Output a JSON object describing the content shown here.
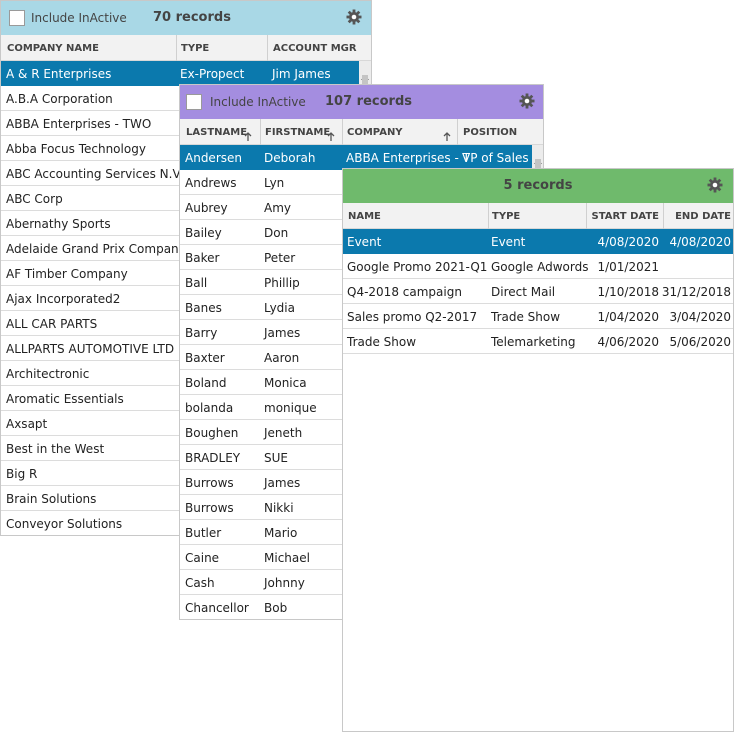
{
  "panels": [
    {
      "include_inactive": "Include InActive",
      "record_count": "70 records",
      "columns": [
        "COMPANY NAME",
        "TYPE",
        "ACCOUNT MGR"
      ],
      "rows": [
        [
          "A & R Enterprises",
          "Ex-Propect",
          "Jim James"
        ],
        [
          "A.B.A Corporation"
        ],
        [
          "ABBA Enterprises - TWO"
        ],
        [
          "Abba Focus Technology"
        ],
        [
          "ABC Accounting Services N.V"
        ],
        [
          "ABC Corp"
        ],
        [
          "Abernathy Sports"
        ],
        [
          "Adelaide Grand Prix Company"
        ],
        [
          "AF Timber Company"
        ],
        [
          "Ajax  Incorporated2"
        ],
        [
          "ALL CAR PARTS"
        ],
        [
          "ALLPARTS AUTOMOTIVE LTD"
        ],
        [
          "Architectronic"
        ],
        [
          "Aromatic Essentials"
        ],
        [
          "Axsapt"
        ],
        [
          "Best in the West"
        ],
        [
          "Big R"
        ],
        [
          "Brain Solutions"
        ],
        [
          "Conveyor Solutions"
        ]
      ]
    },
    {
      "include_inactive": "Include InActive",
      "record_count": "107 records",
      "columns": [
        "LASTNAME",
        "FIRSTNAME",
        "COMPANY",
        "POSITION"
      ],
      "rows": [
        [
          "Andersen",
          "Deborah",
          "ABBA Enterprises - T",
          "VP of Sales"
        ],
        [
          "Andrews",
          "Lyn"
        ],
        [
          "Aubrey",
          "Amy"
        ],
        [
          "Bailey",
          "Don"
        ],
        [
          "Baker",
          "Peter"
        ],
        [
          "Ball",
          "Phillip"
        ],
        [
          "Banes",
          "Lydia"
        ],
        [
          "Barry",
          "James"
        ],
        [
          "Baxter",
          "Aaron"
        ],
        [
          "Boland",
          "Monica"
        ],
        [
          "bolanda",
          "monique"
        ],
        [
          "Boughen",
          "Jeneth"
        ],
        [
          "BRADLEY",
          "SUE"
        ],
        [
          "Burrows",
          "James"
        ],
        [
          "Burrows",
          "Nikki"
        ],
        [
          "Butler",
          "Mario"
        ],
        [
          "Caine",
          "Michael"
        ],
        [
          "Cash",
          "Johnny"
        ],
        [
          "Chancellor",
          "Bob"
        ]
      ]
    },
    {
      "record_count": "5 records",
      "columns": [
        "NAME",
        "TYPE",
        "START DATE",
        "END DATE"
      ],
      "rows": [
        [
          "Event",
          "Event",
          "4/08/2020",
          "4/08/2020"
        ],
        [
          "Google Promo 2021-Q1",
          "Google Adwords",
          "1/01/2021"
        ],
        [
          "Q4-2018 campaign",
          "Direct Mail",
          "1/10/2018",
          "31/12/2018"
        ],
        [
          "Sales promo Q2-2017",
          "Trade Show",
          "1/04/2020",
          "3/04/2020"
        ],
        [
          "Trade Show",
          "Telemarketing",
          "4/06/2020",
          "5/06/2020"
        ]
      ]
    }
  ]
}
